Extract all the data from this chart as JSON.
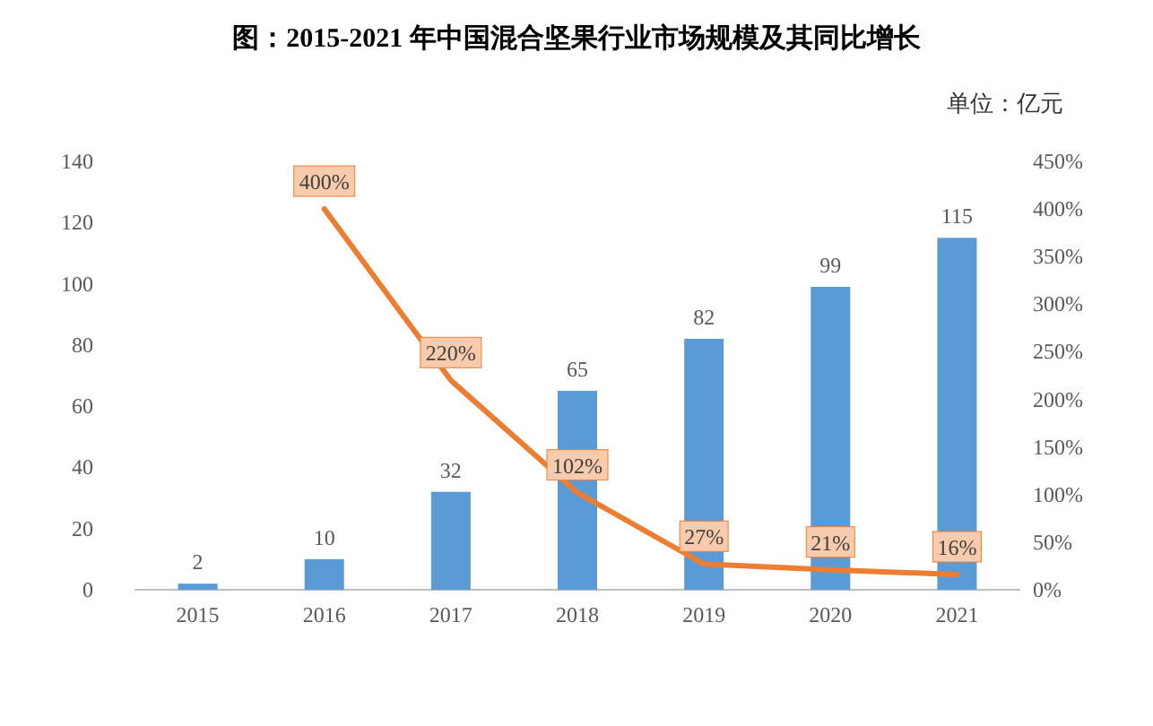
{
  "chart_data": {
    "type": "bar",
    "title": "图：2015-2021 年中国混合坚果行业市场规模及其同比增长",
    "annotations": [
      "单位：亿元"
    ],
    "categories": [
      "2015",
      "2016",
      "2017",
      "2018",
      "2019",
      "2020",
      "2021"
    ],
    "series": [
      {
        "color": "#5b9bd5",
        "values": [
          2,
          10,
          32,
          65,
          82,
          99,
          115
        ],
        "value_labels": [
          "2",
          "10",
          "32",
          "65",
          "82",
          "99",
          "115"
        ]
      },
      {
        "type": "line",
        "axis": "y2",
        "color": "#ed7d31",
        "values": [
          null,
          400,
          220,
          102,
          27,
          21,
          16
        ],
        "value_labels": [
          null,
          "400%",
          "220%",
          "102%",
          "27%",
          "21%",
          "16%"
        ]
      }
    ],
    "ylim": [
      0,
      140
    ],
    "yticks": [
      0,
      20,
      40,
      60,
      80,
      100,
      120,
      140
    ],
    "y2lim": [
      0,
      450
    ],
    "y2ticks": [
      {
        "value": 0,
        "label": "0%"
      },
      {
        "value": 50,
        "label": "50%"
      },
      {
        "value": 100,
        "label": "100%"
      },
      {
        "value": 150,
        "label": "150%"
      },
      {
        "value": 200,
        "label": "200%"
      },
      {
        "value": 250,
        "label": "250%"
      },
      {
        "value": 300,
        "label": "300%"
      },
      {
        "value": 350,
        "label": "350%"
      },
      {
        "value": 400,
        "label": "400%"
      },
      {
        "value": 450,
        "label": "450%"
      }
    ],
    "grid": false
  }
}
